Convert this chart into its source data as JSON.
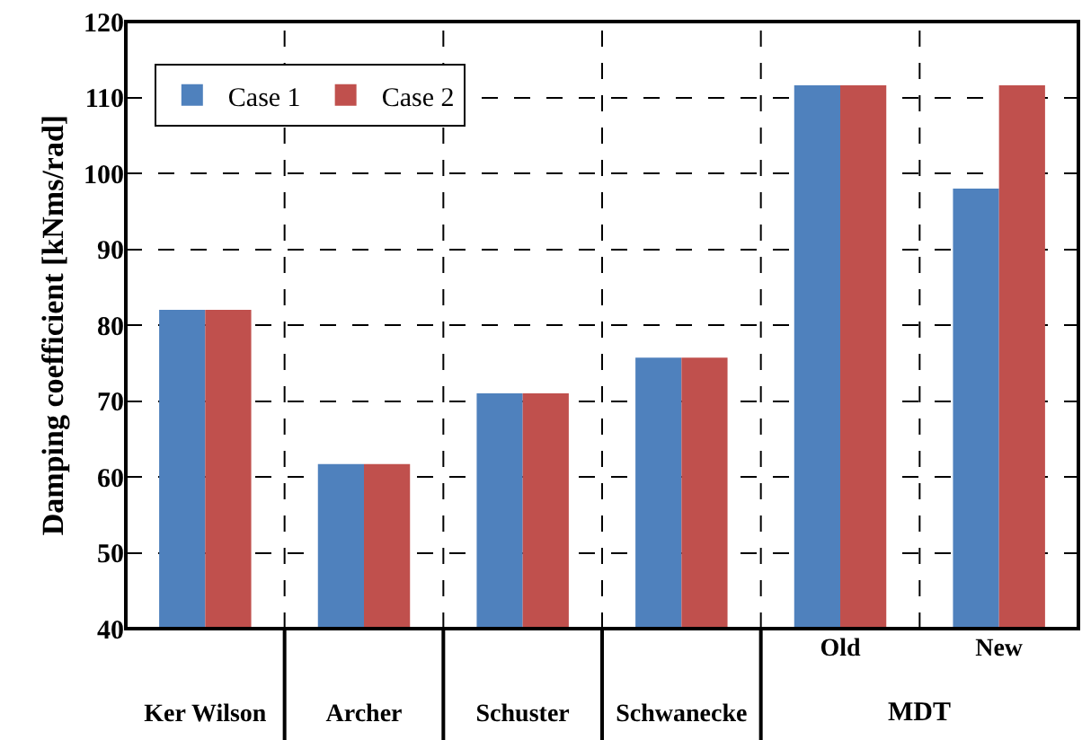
{
  "chart_data": {
    "type": "bar",
    "ylabel": "Damping coefficient [kNms/rad]",
    "categories": [
      "Ker Wilson",
      "Archer",
      "Schuster",
      "Schwanecke",
      "Old",
      "New"
    ],
    "series": [
      {
        "name": "Case 1",
        "color": "#4f81bd",
        "values": [
          82,
          61.7,
          71,
          75.7,
          111.6,
          98
        ]
      },
      {
        "name": "Case 2",
        "color": "#c0504d",
        "values": [
          82,
          61.7,
          71,
          75.7,
          111.6,
          111.6
        ]
      }
    ],
    "ylim": [
      40,
      120
    ],
    "yticks": [
      40,
      50,
      60,
      70,
      80,
      90,
      100,
      110,
      120
    ],
    "grid": true,
    "legend": "top left",
    "annotations": [
      "MDT"
    ]
  }
}
